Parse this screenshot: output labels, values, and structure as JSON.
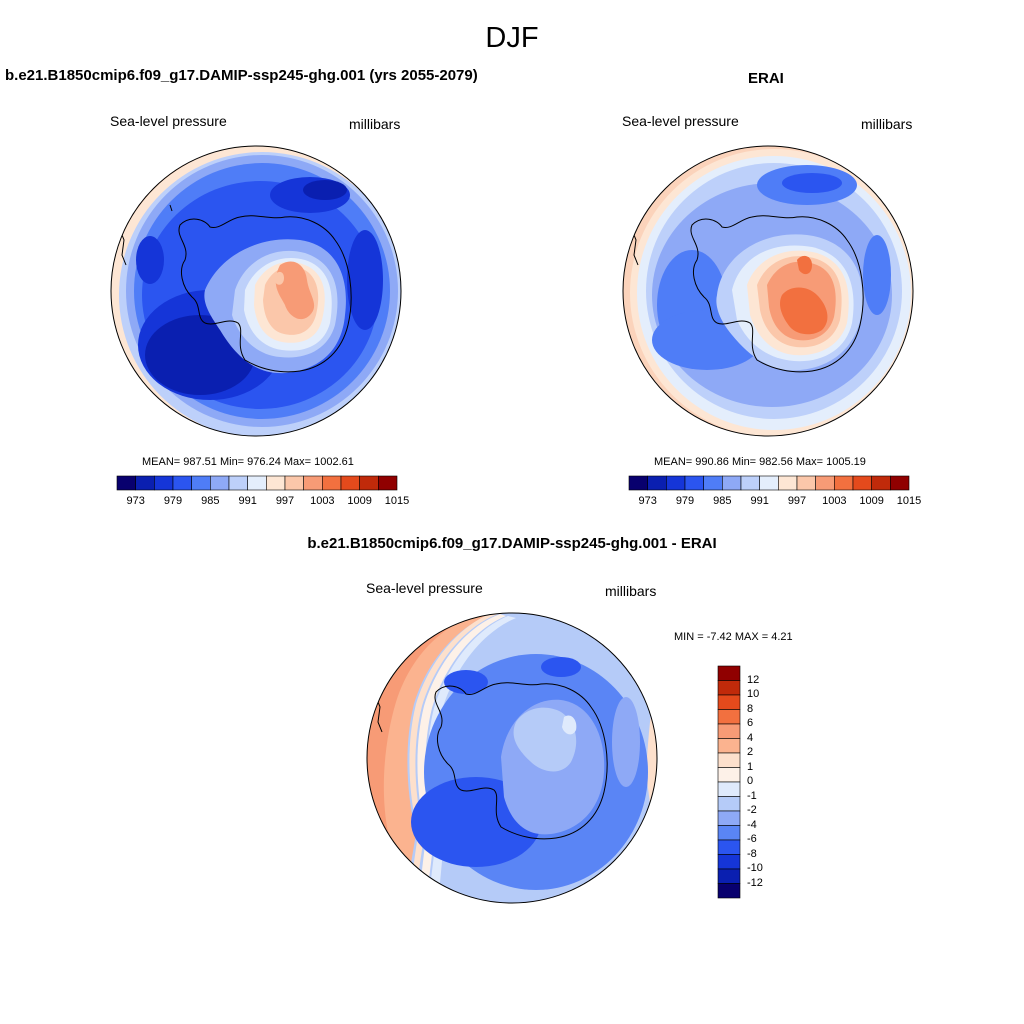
{
  "title": "DJF",
  "panels": [
    {
      "title": "b.e21.B1850cmip6.f09_g17.DAMIP-ssp245-ghg.001 (yrs 2055-2079)",
      "left_label": "Sea-level pressure",
      "right_label": "millibars",
      "stats": "MEAN= 987.51  Min= 976.24  Max= 1002.61"
    },
    {
      "title": "ERAI",
      "left_label": "Sea-level pressure",
      "right_label": "millibars",
      "stats": "MEAN= 990.86  Min= 982.56  Max= 1005.19"
    },
    {
      "title": "b.e21.B1850cmip6.f09_g17.DAMIP-ssp245-ghg.001 - ERAI",
      "left_label": "Sea-level pressure",
      "right_label": "millibars",
      "stats": "MIN =  -7.42 MAX =   4.21"
    }
  ],
  "colorbar_horizontal": {
    "ticks": [
      "973",
      "979",
      "985",
      "991",
      "997",
      "1003",
      "1009",
      "1015"
    ],
    "colors": [
      "#08006e",
      "#0a1fb0",
      "#1535d8",
      "#2b55f0",
      "#4f7df7",
      "#8ea9f6",
      "#bdd0fa",
      "#e4eefc",
      "#fde6d4",
      "#fbc7aa",
      "#f79b76",
      "#f2703f",
      "#e44a1c",
      "#c02a0a",
      "#900000"
    ]
  },
  "colorbar_vertical": {
    "ticks": [
      "12",
      "10",
      "8",
      "6",
      "4",
      "2",
      "1",
      "0",
      "-1",
      "-2",
      "-4",
      "-6",
      "-8",
      "-10",
      "-12"
    ],
    "colors": [
      "#900000",
      "#c02a0a",
      "#e44a1c",
      "#f2703f",
      "#f79b76",
      "#fbb38f",
      "#fde0cc",
      "#fdf1e8",
      "#dfeafc",
      "#b5cbf8",
      "#8ea9f6",
      "#5a85f5",
      "#2b55f0",
      "#1535d8",
      "#0a1fb0",
      "#08006e"
    ]
  }
}
